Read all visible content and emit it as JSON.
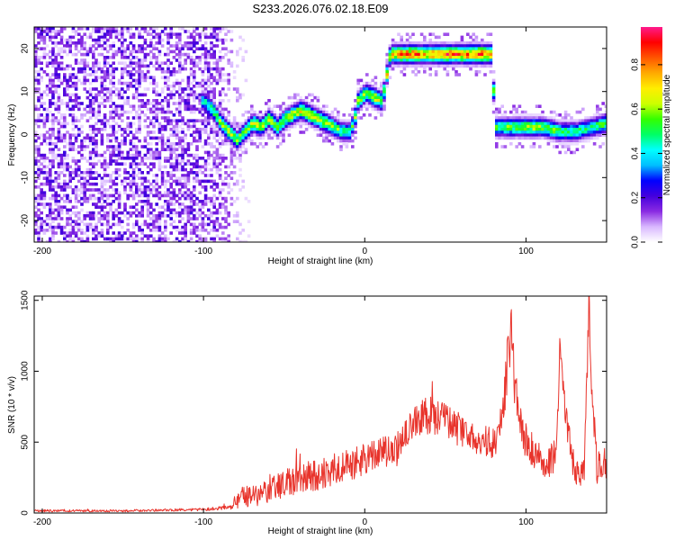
{
  "page_title": "S233.2026.076.02.18.E09",
  "chart_data": [
    {
      "type": "heatmap",
      "name": "spectrogram",
      "xlabel": "Height of straight line (km)",
      "ylabel": "Frequency (Hz)",
      "xlim": [
        -205,
        150
      ],
      "ylim": [
        -25,
        25
      ],
      "xticks": [
        -200,
        -100,
        0,
        100
      ],
      "xtick_labels": [
        "-200",
        "-100",
        "0",
        "100"
      ],
      "yticks": [
        -20,
        -10,
        0,
        10,
        20
      ],
      "ytick_labels": [
        "-20",
        "-10",
        "0",
        "10",
        "20"
      ],
      "colorbar": {
        "label": "Normalized spectral amplitude",
        "range": [
          0,
          0.97
        ],
        "ticks": [
          0.0,
          0.2,
          0.4,
          0.6,
          0.8
        ],
        "tick_labels": [
          "0.0",
          "0.2",
          "0.4",
          "0.6",
          "0.8"
        ],
        "colors": [
          "#ffffff",
          "#d9b8ff",
          "#8a2be2",
          "#4400dd",
          "#0000ff",
          "#00bfff",
          "#00ffff",
          "#00ff66",
          "#33ff00",
          "#ccff00",
          "#ffee00",
          "#ffaa00",
          "#ff5500",
          "#ff0000",
          "#ff1a8c"
        ]
      },
      "ridge": {
        "x": [
          -100,
          -95,
          -90,
          -85,
          -80,
          -75,
          -70,
          -65,
          -60,
          -55,
          -50,
          -45,
          -40,
          -35,
          -30,
          -25,
          -20,
          -15,
          -10,
          -7,
          -5,
          0,
          5,
          10,
          15,
          20,
          30,
          40,
          50,
          60,
          70,
          78,
          80,
          90,
          100,
          110,
          120,
          130,
          140,
          150
        ],
        "y": [
          8,
          6,
          3,
          1,
          -1,
          1,
          3,
          2,
          4,
          2,
          4,
          5,
          6,
          5,
          4,
          3,
          2,
          1,
          1,
          4,
          8,
          10,
          9,
          8,
          19,
          19,
          19,
          19,
          19,
          19,
          19,
          19,
          2,
          2,
          2,
          2,
          1,
          1,
          2,
          3
        ],
        "amplitude": [
          0.45,
          0.55,
          0.6,
          0.65,
          0.6,
          0.6,
          0.7,
          0.65,
          0.65,
          0.6,
          0.65,
          0.7,
          0.7,
          0.7,
          0.65,
          0.7,
          0.6,
          0.55,
          0.5,
          0.6,
          0.65,
          0.6,
          0.7,
          0.65,
          0.75,
          0.85,
          0.85,
          0.8,
          0.9,
          0.85,
          0.9,
          0.8,
          0.55,
          0.6,
          0.65,
          0.6,
          0.55,
          0.5,
          0.5,
          0.6
        ]
      },
      "noise_region_x": [
        -205,
        -95
      ],
      "noise_amplitude_max": 0.2
    },
    {
      "type": "line",
      "name": "snr",
      "xlabel": "Height of straight line (km)",
      "ylabel": "SNR (10 * v/v)",
      "xlim": [
        -205,
        150
      ],
      "ylim": [
        0,
        1530
      ],
      "xticks": [
        -200,
        -100,
        0,
        100
      ],
      "xtick_labels": [
        "-200",
        "-100",
        "0",
        "100"
      ],
      "yticks": [
        0,
        500,
        1000,
        1500
      ],
      "ytick_labels": [
        "0",
        "500",
        "1000",
        "1500"
      ],
      "line_color": "#e8342c",
      "envelope": {
        "x": [
          -205,
          -150,
          -100,
          -82,
          -80,
          -60,
          -40,
          -20,
          0,
          20,
          30,
          40,
          50,
          60,
          70,
          80,
          85,
          89,
          91,
          93,
          98,
          110,
          118,
          121,
          124,
          130,
          136,
          139,
          141,
          144,
          147,
          150
        ],
        "y": [
          15,
          15,
          25,
          40,
          100,
          150,
          250,
          300,
          380,
          450,
          620,
          700,
          650,
          580,
          500,
          500,
          650,
          1100,
          1300,
          900,
          550,
          350,
          400,
          1100,
          700,
          300,
          300,
          1450,
          900,
          300,
          350,
          350
        ],
        "noise": [
          8,
          8,
          10,
          15,
          70,
          90,
          110,
          120,
          110,
          120,
          120,
          140,
          120,
          120,
          110,
          120,
          120,
          200,
          160,
          150,
          130,
          110,
          140,
          180,
          160,
          100,
          120,
          150,
          180,
          120,
          110,
          110
        ]
      }
    }
  ]
}
